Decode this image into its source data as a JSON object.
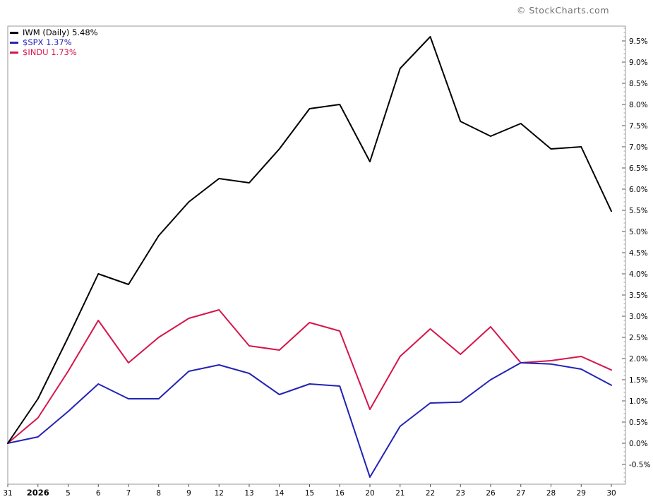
{
  "page": {
    "credit": "© StockCharts.com"
  },
  "legend": [
    {
      "id": "iwm",
      "label": "IWM (Daily) 5.48%",
      "color": "#000000"
    },
    {
      "id": "spx",
      "label": "$SPX 1.37%",
      "color": "#2323b5"
    },
    {
      "id": "indu",
      "label": "$INDU 1.73%",
      "color": "#d6154a"
    }
  ],
  "chart_data": {
    "type": "line",
    "title": "",
    "x_labels": [
      "31",
      "2026",
      "5",
      "6",
      "7",
      "8",
      "9",
      "12",
      "13",
      "14",
      "15",
      "16",
      "20",
      "21",
      "22",
      "23",
      "26",
      "27",
      "28",
      "29",
      "30"
    ],
    "bold_x_label": "2026",
    "series": [
      {
        "id": "iwm",
        "name": "IWM (Daily)",
        "color": "#000000",
        "final_change_pct": 5.48,
        "values": [
          0.0,
          1.05,
          2.5,
          4.0,
          3.75,
          4.9,
          5.7,
          6.25,
          6.15,
          6.95,
          7.9,
          8.0,
          6.65,
          8.85,
          9.6,
          7.6,
          7.25,
          7.55,
          6.95,
          7.0,
          5.48
        ]
      },
      {
        "id": "spx",
        "name": "$SPX",
        "color": "#2323b5",
        "final_change_pct": 1.37,
        "values": [
          0.0,
          0.15,
          0.75,
          1.4,
          1.05,
          1.05,
          1.7,
          1.85,
          1.65,
          1.15,
          1.4,
          1.35,
          -0.8,
          0.4,
          0.95,
          0.97,
          1.5,
          1.9,
          1.87,
          1.75,
          1.37
        ]
      },
      {
        "id": "indu",
        "name": "$INDU",
        "color": "#d6154a",
        "final_change_pct": 1.73,
        "values": [
          0.0,
          0.6,
          1.7,
          2.9,
          1.9,
          2.5,
          2.95,
          3.15,
          2.3,
          2.2,
          2.85,
          2.65,
          0.8,
          2.05,
          2.7,
          2.1,
          2.75,
          1.9,
          1.95,
          2.05,
          1.73
        ]
      }
    ],
    "y_tick_labels": [
      "9.5%",
      "9.0%",
      "8.5%",
      "8.0%",
      "7.5%",
      "7.0%",
      "6.5%",
      "6.0%",
      "5.5%",
      "5.0%",
      "4.5%",
      "4.0%",
      "3.5%",
      "3.0%",
      "2.5%",
      "2.0%",
      "1.5%",
      "1.0%",
      "0.5%",
      "0.0%",
      "-0.5%"
    ],
    "y_major_ticks": [
      9.5,
      9.0,
      8.5,
      8.0,
      7.5,
      7.0,
      6.5,
      6.0,
      5.5,
      5.0,
      4.5,
      4.0,
      3.5,
      3.0,
      2.5,
      2.0,
      1.5,
      1.0,
      0.5,
      0.0,
      -0.5
    ],
    "y_minor_step": 0.1,
    "y_unit": "%",
    "ylim": [
      -0.97,
      9.85
    ],
    "grid": false,
    "legend_position": "top-left",
    "axis_color": "#999999",
    "tick_color": "#555555",
    "minor_tick_color": "#aaaaaa"
  }
}
